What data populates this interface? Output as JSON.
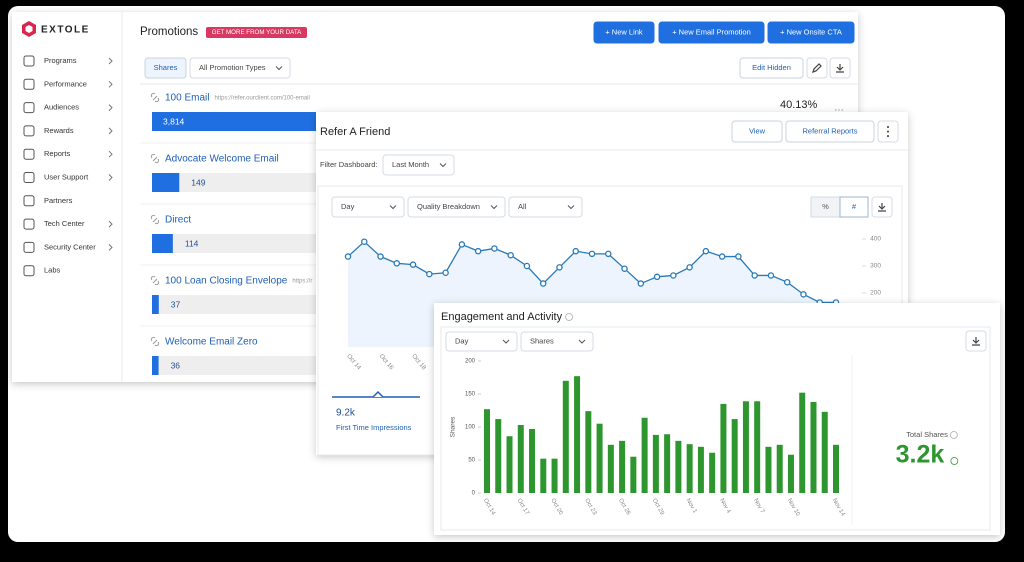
{
  "sidebar": {
    "brand": "EXTOLE",
    "menu": [
      "Programs",
      "Performance",
      "Audiences",
      "Rewards",
      "Reports",
      "User Support",
      "Partners",
      "Tech Center",
      "Security Center",
      "Labs"
    ]
  },
  "promotions": {
    "title": "Promotions",
    "badge": "GET MORE FROM YOUR DATA",
    "buttons": [
      "+ New Link",
      "+ New Email Promotion",
      "+ New Onsite CTA"
    ],
    "tab": "Shares",
    "filter": "All Promotion Types",
    "edit_button": "Edit Hidden",
    "share_percent": "40.13%",
    "list": {
      "type": "bar",
      "categories": [
        "100 Email",
        "Advocate Welcome Email",
        "Direct",
        "100 Loan Closing Envelope",
        "Welcome Email Zero"
      ],
      "urls": [
        "https://refer.ourclient.com/100-email",
        null,
        null,
        "https://r",
        null
      ],
      "values": [
        3814,
        149,
        114,
        37,
        36
      ],
      "value_labels": [
        "3,814",
        "149",
        "114",
        "37",
        "36"
      ],
      "color": "#1f6fe0"
    }
  },
  "refer_a_friend": {
    "title": "Refer A Friend",
    "buttons": [
      "View",
      "Referral Reports"
    ],
    "filter_label": "Filter Dashboard:",
    "filter_value": "Last Month",
    "controls": [
      "Day",
      "Quality Breakdown",
      "All"
    ],
    "toggles": [
      "%",
      "#"
    ],
    "chart": {
      "type": "line",
      "categories": [
        "Oct 14",
        null,
        "Oct 16",
        null,
        "Oct 18",
        null,
        null,
        null,
        null,
        null,
        null,
        null,
        null,
        null,
        null,
        null,
        null,
        null,
        null,
        null,
        null,
        null,
        null,
        null,
        null,
        null,
        null,
        null,
        null,
        null,
        null
      ],
      "values": [
        335,
        390,
        335,
        310,
        305,
        270,
        275,
        380,
        355,
        365,
        340,
        300,
        235,
        295,
        355,
        345,
        345,
        290,
        235,
        260,
        265,
        295,
        355,
        335,
        335,
        265,
        265,
        240,
        195,
        165,
        165
      ],
      "ylim": [
        0,
        400
      ],
      "yticks": [
        200,
        300,
        400
      ],
      "color": "#2a7ab8"
    },
    "metric": {
      "value": "9.2k",
      "label": "First Time Impressions"
    }
  },
  "engagement": {
    "title": "Engagement and Activity",
    "controls": [
      "Day",
      "Shares"
    ],
    "chart": {
      "type": "bar",
      "y_label": "Shares",
      "categories": [
        "Oct 14",
        null,
        null,
        "Oct 17",
        null,
        null,
        "Oct 20",
        null,
        null,
        "Oct 23",
        null,
        null,
        "Oct 26",
        null,
        null,
        "Oct 29",
        null,
        null,
        "Nov 1",
        null,
        null,
        "Nov 4",
        null,
        null,
        "Nov 7",
        null,
        null,
        "Nov 10",
        null,
        null,
        null,
        "Nov 14"
      ],
      "values": [
        127,
        112,
        86,
        103,
        97,
        52,
        52,
        170,
        177,
        124,
        105,
        73,
        79,
        55,
        114,
        88,
        89,
        79,
        74,
        70,
        61,
        135,
        112,
        139,
        139,
        70,
        73,
        58,
        152,
        138,
        123,
        73
      ],
      "ylim": [
        0,
        200
      ],
      "yticks": [
        0,
        50,
        100,
        150,
        200
      ],
      "color": "#2e962e"
    },
    "total": {
      "label": "Total Shares",
      "value": "3.2k"
    }
  }
}
